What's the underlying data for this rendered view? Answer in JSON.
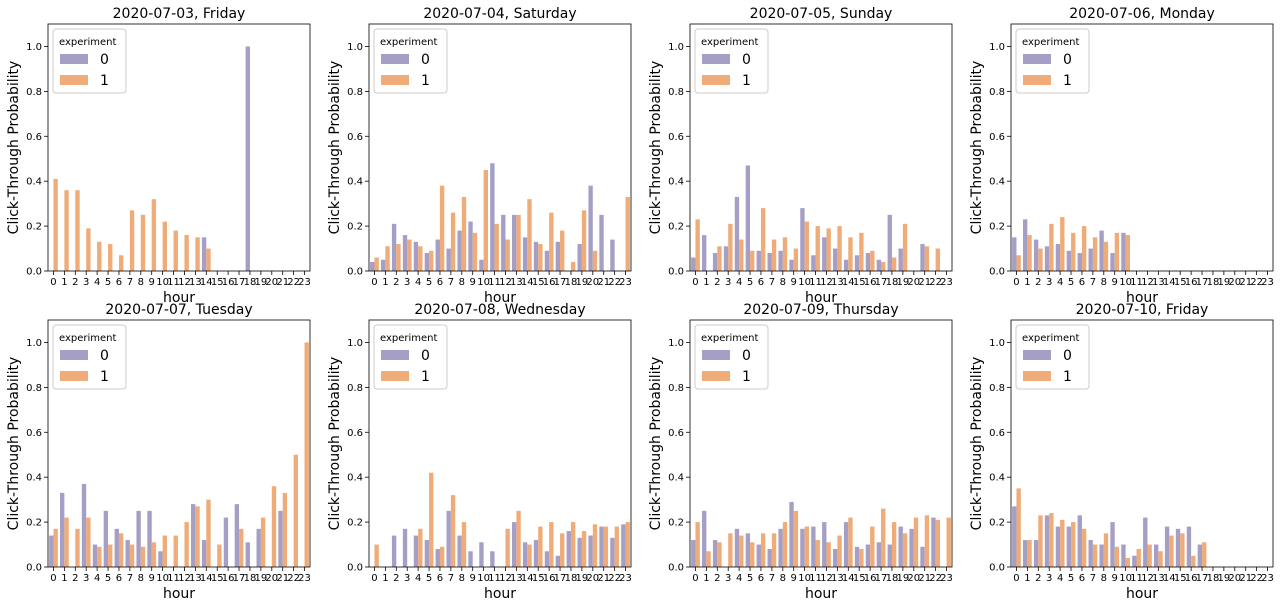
{
  "colors": {
    "series0": "#a59fc6",
    "series1": "#efac78"
  },
  "chart_data": [
    {
      "type": "bar",
      "title": "2020-07-03, Friday",
      "xlabel": "hour",
      "ylabel": "Click-Through Probability",
      "ylim": [
        0,
        1.1
      ],
      "legend": {
        "title": "experiment",
        "placement": "top-left"
      },
      "categories": [
        "0",
        "1",
        "2",
        "3",
        "4",
        "5",
        "6",
        "7",
        "8",
        "9",
        "10",
        "11",
        "12",
        "13",
        "14",
        "15",
        "16",
        "17",
        "18",
        "19",
        "20",
        "21",
        "22",
        "23"
      ],
      "series": [
        {
          "name": "0",
          "values": [
            0,
            0,
            0,
            0,
            0,
            0,
            0,
            0,
            0,
            0,
            0,
            0,
            0,
            0,
            0.15,
            0,
            0,
            0,
            1.0,
            0,
            0,
            0,
            0,
            0
          ]
        },
        {
          "name": "1",
          "values": [
            0.41,
            0.36,
            0.36,
            0.19,
            0.13,
            0.12,
            0.07,
            0.27,
            0.25,
            0.32,
            0.22,
            0.18,
            0.16,
            0.15,
            0.1,
            0,
            0,
            0,
            0,
            0,
            0,
            0,
            0,
            0
          ]
        }
      ]
    },
    {
      "type": "bar",
      "title": "2020-07-04, Saturday",
      "xlabel": "hour",
      "ylabel": "Click-Through Probability",
      "ylim": [
        0,
        1.1
      ],
      "legend": {
        "title": "experiment",
        "placement": "top-left"
      },
      "categories": [
        "0",
        "1",
        "2",
        "3",
        "4",
        "5",
        "6",
        "7",
        "8",
        "9",
        "10",
        "11",
        "12",
        "13",
        "14",
        "15",
        "16",
        "17",
        "18",
        "19",
        "20",
        "21",
        "22",
        "23"
      ],
      "series": [
        {
          "name": "0",
          "values": [
            0.04,
            0.05,
            0.21,
            0.16,
            0.13,
            0.08,
            0.14,
            0.1,
            0.18,
            0.22,
            0.05,
            0.48,
            0.25,
            0.25,
            0.15,
            0.13,
            0.09,
            0.13,
            0,
            0.12,
            0.38,
            0.25,
            0.14,
            0
          ]
        },
        {
          "name": "1",
          "values": [
            0.06,
            0.11,
            0.12,
            0.14,
            0.11,
            0.09,
            0.38,
            0.26,
            0.33,
            0.17,
            0.45,
            0.21,
            0.14,
            0.25,
            0.32,
            0.12,
            0.26,
            0.18,
            0.04,
            0.27,
            0.09,
            0,
            0,
            0.33
          ]
        }
      ]
    },
    {
      "type": "bar",
      "title": "2020-07-05, Sunday",
      "xlabel": "hour",
      "ylabel": "Click-Through Probability",
      "ylim": [
        0,
        1.1
      ],
      "legend": {
        "title": "experiment",
        "placement": "top-left"
      },
      "categories": [
        "0",
        "1",
        "2",
        "3",
        "4",
        "5",
        "6",
        "7",
        "8",
        "9",
        "10",
        "11",
        "12",
        "13",
        "14",
        "15",
        "16",
        "17",
        "18",
        "19",
        "20",
        "21",
        "22",
        "23"
      ],
      "series": [
        {
          "name": "0",
          "values": [
            0.06,
            0.16,
            0.08,
            0.11,
            0.33,
            0.47,
            0.09,
            0.08,
            0.09,
            0.05,
            0.28,
            0.07,
            0.15,
            0.1,
            0.05,
            0.07,
            0.08,
            0.05,
            0.25,
            0.1,
            0,
            0.12,
            0,
            0
          ]
        },
        {
          "name": "1",
          "values": [
            0.23,
            0,
            0.11,
            0.21,
            0.14,
            0.09,
            0.28,
            0.14,
            0.15,
            0.1,
            0.22,
            0.2,
            0.19,
            0.2,
            0.15,
            0.17,
            0.09,
            0.04,
            0.06,
            0.21,
            0,
            0.11,
            0.1,
            0
          ]
        }
      ]
    },
    {
      "type": "bar",
      "title": "2020-07-06, Monday",
      "xlabel": "hour",
      "ylabel": "Click-Through Probability",
      "ylim": [
        0,
        1.1
      ],
      "legend": {
        "title": "experiment",
        "placement": "top-left"
      },
      "categories": [
        "0",
        "1",
        "2",
        "3",
        "4",
        "5",
        "6",
        "7",
        "8",
        "9",
        "10",
        "11",
        "12",
        "13",
        "14",
        "15",
        "16",
        "17",
        "18",
        "19",
        "20",
        "21",
        "22",
        "23"
      ],
      "series": [
        {
          "name": "0",
          "values": [
            0.15,
            0.23,
            0.14,
            0.11,
            0.12,
            0.09,
            0.08,
            0.1,
            0.18,
            0.08,
            0.17,
            0,
            0,
            0,
            0,
            0,
            0,
            0,
            0,
            0,
            0,
            0,
            0,
            0
          ]
        },
        {
          "name": "1",
          "values": [
            0.07,
            0.16,
            0.1,
            0.21,
            0.24,
            0.17,
            0.2,
            0.15,
            0.13,
            0.17,
            0.16,
            0,
            0,
            0,
            0,
            0,
            0,
            0,
            0,
            0,
            0,
            0,
            0,
            0
          ]
        }
      ]
    },
    {
      "type": "bar",
      "title": "2020-07-07, Tuesday",
      "xlabel": "hour",
      "ylabel": "Click-Through Probability",
      "ylim": [
        0,
        1.1
      ],
      "legend": {
        "title": "experiment",
        "placement": "top-left"
      },
      "categories": [
        "0",
        "1",
        "2",
        "3",
        "4",
        "5",
        "6",
        "7",
        "8",
        "9",
        "10",
        "11",
        "12",
        "13",
        "14",
        "15",
        "16",
        "17",
        "18",
        "19",
        "20",
        "21",
        "22",
        "23"
      ],
      "series": [
        {
          "name": "0",
          "values": [
            0.14,
            0.33,
            0,
            0.37,
            0.1,
            0.25,
            0.17,
            0.12,
            0.25,
            0.25,
            0.07,
            0,
            0,
            0.28,
            0.12,
            0,
            0.22,
            0.28,
            0.11,
            0.17,
            0,
            0.25,
            0,
            0
          ]
        },
        {
          "name": "1",
          "values": [
            0.17,
            0.22,
            0.17,
            0.22,
            0.09,
            0.1,
            0.15,
            0.1,
            0.09,
            0.11,
            0.14,
            0.14,
            0.2,
            0.27,
            0.3,
            0.1,
            0,
            0.17,
            0,
            0.22,
            0.36,
            0.33,
            0.5,
            1.0
          ]
        }
      ]
    },
    {
      "type": "bar",
      "title": "2020-07-08, Wednesday",
      "xlabel": "hour",
      "ylabel": "Click-Through Probability",
      "ylim": [
        0,
        1.1
      ],
      "legend": {
        "title": "experiment",
        "placement": "top-left"
      },
      "categories": [
        "0",
        "1",
        "2",
        "3",
        "4",
        "5",
        "6",
        "7",
        "8",
        "9",
        "10",
        "11",
        "12",
        "13",
        "14",
        "15",
        "16",
        "17",
        "18",
        "19",
        "20",
        "21",
        "22",
        "23"
      ],
      "series": [
        {
          "name": "0",
          "values": [
            0,
            0,
            0.14,
            0.17,
            0.14,
            0.12,
            0.08,
            0.25,
            0.14,
            0.07,
            0.11,
            0.07,
            0,
            0.2,
            0.11,
            0.12,
            0.07,
            0.05,
            0.16,
            0.13,
            0.14,
            0.18,
            0.13,
            0.19
          ]
        },
        {
          "name": "1",
          "values": [
            0.1,
            0,
            0,
            0,
            0.17,
            0.42,
            0.09,
            0.32,
            0.2,
            0,
            0,
            0,
            0.17,
            0.25,
            0.1,
            0.18,
            0.2,
            0.15,
            0.2,
            0.16,
            0.19,
            0.18,
            0.18,
            0.2
          ]
        }
      ]
    },
    {
      "type": "bar",
      "title": "2020-07-09, Thursday",
      "xlabel": "hour",
      "ylabel": "Click-Through Probability",
      "ylim": [
        0,
        1.1
      ],
      "legend": {
        "title": "experiment",
        "placement": "top-left"
      },
      "categories": [
        "0",
        "1",
        "2",
        "3",
        "4",
        "5",
        "6",
        "7",
        "8",
        "9",
        "10",
        "11",
        "12",
        "13",
        "14",
        "15",
        "16",
        "17",
        "18",
        "19",
        "20",
        "21",
        "22",
        "23"
      ],
      "series": [
        {
          "name": "0",
          "values": [
            0.12,
            0.25,
            0.12,
            0,
            0.17,
            0.15,
            0.1,
            0.08,
            0.17,
            0.29,
            0.17,
            0.18,
            0.2,
            0.08,
            0.2,
            0.09,
            0.1,
            0.11,
            0.1,
            0.18,
            0.17,
            0.09,
            0.22,
            0
          ]
        },
        {
          "name": "1",
          "values": [
            0.2,
            0.07,
            0.11,
            0.15,
            0.14,
            0.11,
            0.15,
            0.15,
            0.2,
            0.25,
            0.18,
            0.12,
            0.11,
            0.14,
            0.22,
            0.08,
            0.18,
            0.26,
            0.2,
            0.15,
            0.22,
            0.23,
            0.21,
            0.22
          ]
        }
      ]
    },
    {
      "type": "bar",
      "title": "2020-07-10, Friday",
      "xlabel": "hour",
      "ylabel": "Click-Through Probability",
      "ylim": [
        0,
        1.1
      ],
      "legend": {
        "title": "experiment",
        "placement": "top-left"
      },
      "categories": [
        "0",
        "1",
        "2",
        "3",
        "4",
        "5",
        "6",
        "7",
        "8",
        "9",
        "10",
        "11",
        "12",
        "13",
        "14",
        "15",
        "16",
        "17",
        "18",
        "19",
        "20",
        "21",
        "22",
        "23"
      ],
      "series": [
        {
          "name": "0",
          "values": [
            0.27,
            0.12,
            0.12,
            0.23,
            0.18,
            0.18,
            0.23,
            0.12,
            0.1,
            0.2,
            0.1,
            0.05,
            0.22,
            0.1,
            0.18,
            0.17,
            0.18,
            0.1,
            0,
            0,
            0,
            0,
            0,
            0
          ]
        },
        {
          "name": "1",
          "values": [
            0.35,
            0.12,
            0.23,
            0.24,
            0.21,
            0.2,
            0.17,
            0.1,
            0.15,
            0.09,
            0.04,
            0.08,
            0.1,
            0.07,
            0.14,
            0.15,
            0.05,
            0.11,
            0,
            0,
            0,
            0,
            0,
            0
          ]
        }
      ]
    }
  ]
}
